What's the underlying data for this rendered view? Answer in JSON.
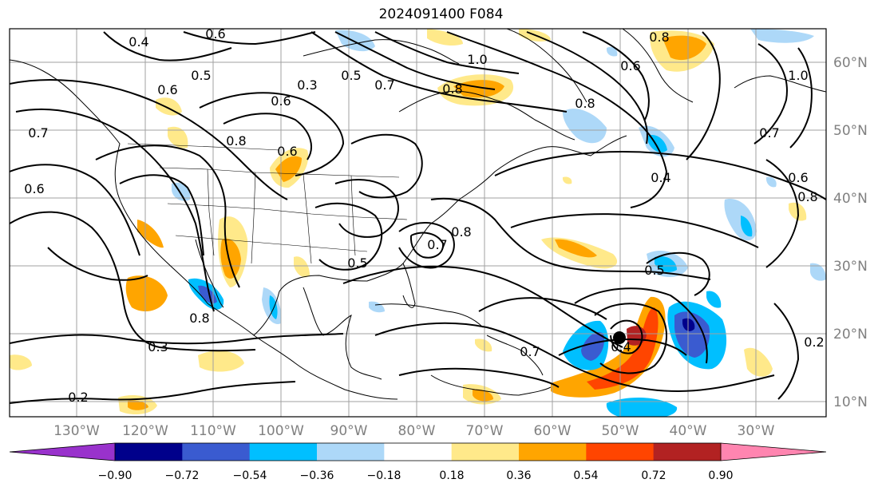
{
  "title": "2024091400 F084",
  "map": {
    "lon_labels": [
      "130°W",
      "120°W",
      "110°W",
      "100°W",
      "90°W",
      "80°W",
      "70°W",
      "60°W",
      "50°W",
      "40°W",
      "30°W"
    ],
    "lat_labels": [
      "60°N",
      "50°N",
      "40°N",
      "30°N",
      "20°N",
      "10°N"
    ],
    "contour_labels": [
      "0.4",
      "0.6",
      "0.5",
      "0.6",
      "0.3",
      "0.5",
      "0.7",
      "0.6",
      "1.0",
      "0.8",
      "0.8",
      "0.6",
      "0.8",
      "1.0",
      "0.7",
      "0.6",
      "0.8",
      "0.4",
      "0.8",
      "0.6",
      "0.7",
      "0.6",
      "0.7",
      "0.8",
      "0.5",
      "0.5",
      "0.8",
      "0.3",
      "0.2",
      "0.7",
      "0.4",
      "0.2"
    ],
    "colors": {
      "land_outline": "#000000",
      "grid": "#a0a0a0"
    }
  },
  "colorbar": {
    "ticks": [
      "−0.90",
      "−0.72",
      "−0.54",
      "−0.36",
      "−0.18",
      "0.18",
      "0.36",
      "0.54",
      "0.72",
      "0.90"
    ],
    "colors": [
      "#9932cc",
      "#00008b",
      "#3a5bd0",
      "#00bfff",
      "#add8f8",
      "#ffffff",
      "#ffe98a",
      "#ffa500",
      "#ff4500",
      "#b22222",
      "#ff85b0"
    ]
  }
}
